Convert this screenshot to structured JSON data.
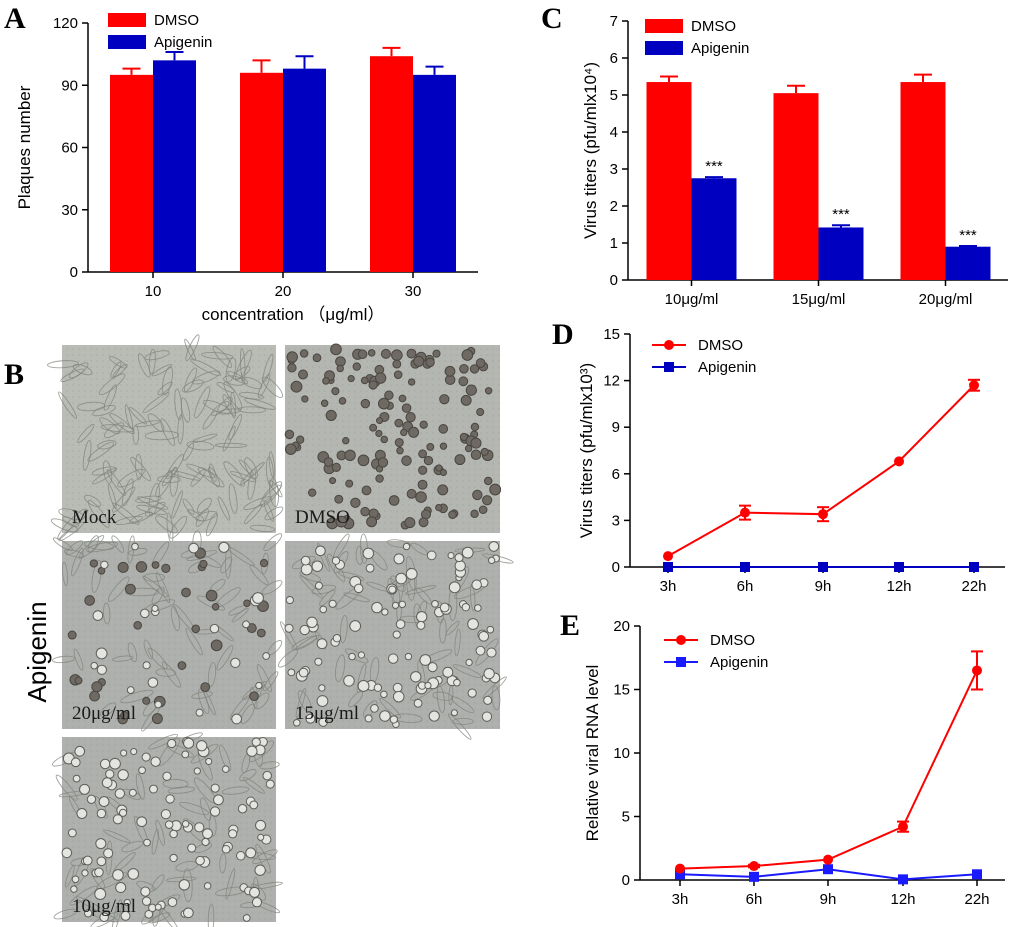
{
  "figure": {
    "panel_a_letter": "A",
    "panel_b_letter": "B",
    "panel_c_letter": "C",
    "panel_d_letter": "D",
    "panel_e_letter": "E",
    "colors": {
      "dmso": "#ff0000",
      "apigenin_dark": "#0000c0",
      "apigenin_bright": "#1a1aff"
    }
  },
  "panel_b": {
    "side_label": "Apigenin",
    "images": [
      {
        "label": "Mock",
        "kind": "spread"
      },
      {
        "label": "DMSO",
        "kind": "round"
      },
      {
        "label": "20μg/ml",
        "kind": "mixed"
      },
      {
        "label": "15μg/ml",
        "kind": "round_light"
      },
      {
        "label": "10μg/ml",
        "kind": "round_light"
      }
    ]
  },
  "chart_data": [
    {
      "id": "A",
      "type": "bar",
      "title": "",
      "xlabel": "concentration （μg/ml）",
      "ylabel": "Plaques number",
      "categories": [
        "10",
        "20",
        "30"
      ],
      "ylim": [
        0,
        120
      ],
      "yticks": [
        0,
        30,
        60,
        90,
        120
      ],
      "legend_position": "top-left",
      "series": [
        {
          "name": "DMSO",
          "color": "#ff0000",
          "values": [
            95,
            96,
            104
          ],
          "errors": [
            3,
            6,
            4
          ]
        },
        {
          "name": "Apigenin",
          "color": "#0000c0",
          "values": [
            102,
            98,
            95
          ],
          "errors": [
            4,
            6,
            4
          ]
        }
      ]
    },
    {
      "id": "C",
      "type": "bar",
      "title": "",
      "xlabel": "",
      "ylabel": "Virus titers (pfu/mlx10⁴)",
      "categories": [
        "10μg/ml",
        "15μg/ml",
        "20μg/ml"
      ],
      "ylim": [
        0,
        7
      ],
      "yticks": [
        0,
        1,
        2,
        3,
        4,
        5,
        6,
        7
      ],
      "legend_position": "top-left",
      "annotations": [
        "***",
        "***",
        "***"
      ],
      "series": [
        {
          "name": "DMSO",
          "color": "#ff0000",
          "values": [
            5.35,
            5.05,
            5.35
          ],
          "errors": [
            0.15,
            0.2,
            0.2
          ]
        },
        {
          "name": "Apigenin",
          "color": "#0000c0",
          "values": [
            2.75,
            1.42,
            0.9
          ],
          "errors": [
            0.03,
            0.06,
            0.02
          ]
        }
      ]
    },
    {
      "id": "D",
      "type": "line",
      "title": "",
      "xlabel": "",
      "ylabel": "Virus titers (pfu/mlx10³)",
      "categories": [
        "3h",
        "6h",
        "9h",
        "12h",
        "22h"
      ],
      "ylim": [
        0,
        15
      ],
      "yticks": [
        0,
        3,
        6,
        9,
        12,
        15
      ],
      "legend_position": "top-left",
      "series": [
        {
          "name": "DMSO",
          "color": "#ff0000",
          "marker": "circle",
          "values": [
            0.7,
            3.5,
            3.4,
            6.8,
            11.7
          ],
          "errors": [
            0,
            0.45,
            0.45,
            0,
            0.35
          ]
        },
        {
          "name": "Apigenin",
          "color": "#0000c0",
          "marker": "square",
          "values": [
            0,
            0,
            0,
            0,
            0
          ],
          "errors": [
            0,
            0,
            0,
            0,
            0
          ]
        }
      ]
    },
    {
      "id": "E",
      "type": "line",
      "title": "",
      "xlabel": "",
      "ylabel": "Relative viral RNA level",
      "categories": [
        "3h",
        "6h",
        "9h",
        "12h",
        "22h"
      ],
      "ylim": [
        0,
        20
      ],
      "yticks": [
        0,
        5,
        10,
        15,
        20
      ],
      "legend_position": "top-left",
      "series": [
        {
          "name": "DMSO",
          "color": "#ff0000",
          "marker": "circle",
          "values": [
            0.9,
            1.1,
            1.6,
            4.2,
            16.5
          ],
          "errors": [
            0,
            0.1,
            0,
            0.4,
            1.5
          ]
        },
        {
          "name": "Apigenin",
          "color": "#1a1aff",
          "marker": "square",
          "values": [
            0.45,
            0.25,
            0.85,
            0.05,
            0.45
          ],
          "errors": [
            0,
            0,
            0,
            0,
            0
          ]
        }
      ]
    }
  ]
}
